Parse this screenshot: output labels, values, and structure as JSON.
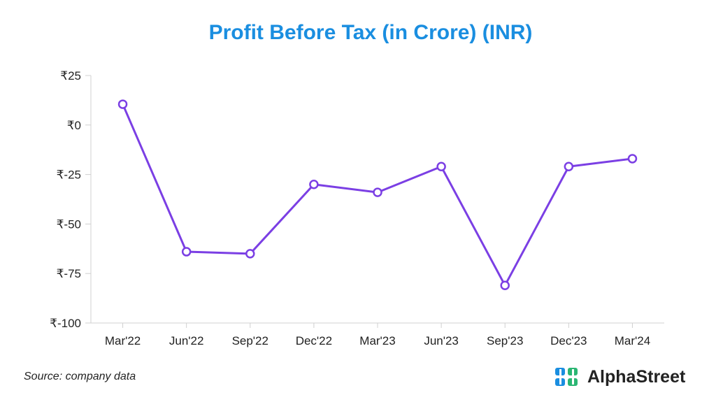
{
  "chart_data": {
    "type": "line",
    "title": "Profit Before Tax (in Crore) (INR)",
    "categories": [
      "Mar'22",
      "Jun'22",
      "Sep'22",
      "Dec'22",
      "Mar'23",
      "Jun'23",
      "Sep'23",
      "Dec'23",
      "Mar'24"
    ],
    "series": [
      {
        "values": [
          10.5,
          -64,
          -65,
          -30,
          -34,
          -21,
          -81,
          -21,
          -17
        ]
      }
    ],
    "ylim": [
      -100,
      25
    ],
    "yticks": [
      25,
      0,
      -25,
      -50,
      -75,
      -100
    ],
    "ytick_labels": [
      "₹25",
      "₹0",
      "₹-25",
      "₹-50",
      "₹-75",
      "₹-100"
    ],
    "line_color": "#7b3fe4",
    "marker_fill": "#ffffff",
    "grid": false
  },
  "footer": {
    "source": "Source: company data",
    "brand": "AlphaStreet",
    "brand_colors": [
      "#1a8ee0",
      "#2bb673"
    ]
  }
}
